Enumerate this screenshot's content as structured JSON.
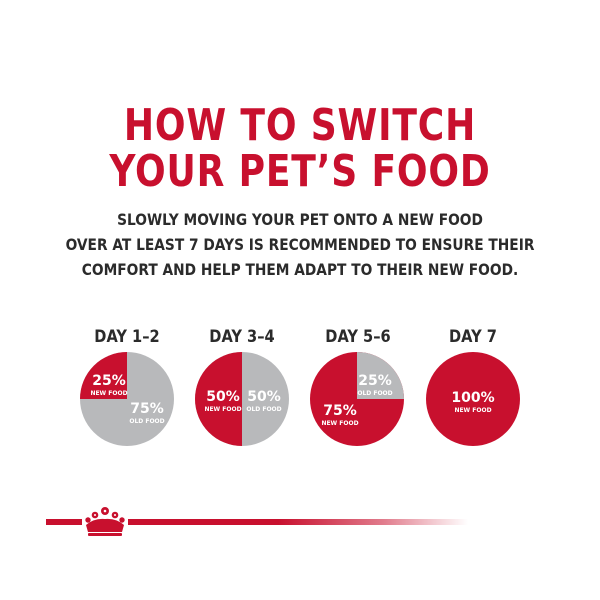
{
  "headline": {
    "line1": "HOW TO SWITCH",
    "line2": "YOUR PET’S FOOD"
  },
  "intro": {
    "line1": "SLOWLY MOVING YOUR PET ONTO A NEW FOOD",
    "line2": "OVER AT LEAST 7 DAYS IS RECOMMENDED TO ENSURE THEIR",
    "line3": "COMFORT AND HELP THEM ADAPT TO THEIR NEW FOOD."
  },
  "colors": {
    "red": "#c8102e",
    "gray": "#b8b9bb",
    "text": "#2b2b2b"
  },
  "schedule": [
    {
      "day": "DAY 1–2",
      "new": {
        "pct": "25%",
        "label": "NEW FOOD",
        "value": 25
      },
      "old": {
        "pct": "75%",
        "label": "OLD FOOD",
        "value": 75
      }
    },
    {
      "day": "DAY 3–4",
      "new": {
        "pct": "50%",
        "label": "NEW FOOD",
        "value": 50
      },
      "old": {
        "pct": "50%",
        "label": "OLD FOOD",
        "value": 50
      }
    },
    {
      "day": "DAY 5–6",
      "new": {
        "pct": "75%",
        "label": "NEW FOOD",
        "value": 75
      },
      "old": {
        "pct": "25%",
        "label": "OLD FOOD",
        "value": 25
      }
    },
    {
      "day": "DAY 7",
      "new": {
        "pct": "100%",
        "label": "NEW FOOD",
        "value": 100
      }
    }
  ],
  "footer": {
    "icon": "crown-icon"
  }
}
